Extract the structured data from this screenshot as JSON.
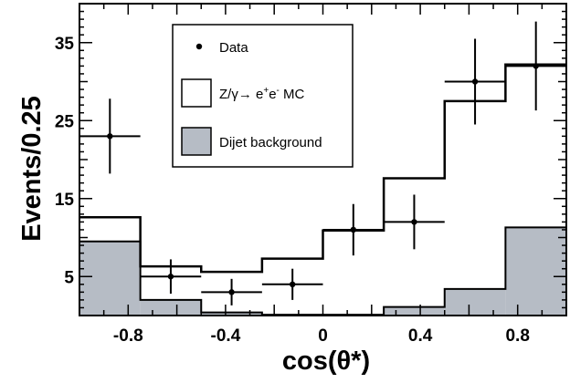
{
  "chart_data": {
    "type": "bar",
    "title": "",
    "xlabel": "cos(θ*)",
    "ylabel": "Events/0.25",
    "xlim": [
      -1.0,
      1.0
    ],
    "ylim": [
      0,
      40
    ],
    "x_ticks": [
      -0.8,
      -0.4,
      0,
      0.4,
      0.8
    ],
    "x_tick_labels": [
      "-0.8",
      "-0.4",
      "0",
      "0.4",
      "0.8"
    ],
    "y_ticks": [
      5,
      15,
      25,
      35
    ],
    "y_tick_labels": [
      "5",
      "15",
      "25",
      "35"
    ],
    "bin_edges": [
      -1.0,
      -0.75,
      -0.5,
      -0.25,
      0.0,
      0.25,
      0.5,
      0.75,
      1.0
    ],
    "legend_position": "top-center",
    "series": [
      {
        "name": "Data",
        "kind": "points",
        "x": [
          -0.875,
          -0.625,
          -0.375,
          -0.125,
          0.125,
          0.375,
          0.625,
          0.875
        ],
        "y": [
          23,
          5,
          3,
          4,
          11,
          12,
          30,
          32
        ],
        "y_err": [
          4.8,
          2.2,
          1.7,
          2.0,
          3.3,
          3.5,
          5.5,
          5.7
        ],
        "x_err": 0.125,
        "color": "#000000"
      },
      {
        "name": "Z/γ→ e⁺e⁻ MC",
        "kind": "step",
        "values": [
          12.6,
          6.3,
          5.6,
          7.3,
          10.9,
          17.6,
          27.5,
          32.2
        ],
        "color": "#000000"
      },
      {
        "name": "Dijet background",
        "kind": "filled",
        "values": [
          9.5,
          2.0,
          0.4,
          0.1,
          0.1,
          1.1,
          3.4,
          11.3
        ],
        "fill": "#b6bcc5",
        "color": "#000000"
      }
    ],
    "legend": {
      "data_label": "Data",
      "mc_label_prefix": "Z/γ→ e",
      "mc_label_sup1": "+",
      "mc_label_mid": "e",
      "mc_label_sup2": "-",
      "mc_label_suffix": " MC",
      "bkg_label": "Dijet background"
    }
  }
}
